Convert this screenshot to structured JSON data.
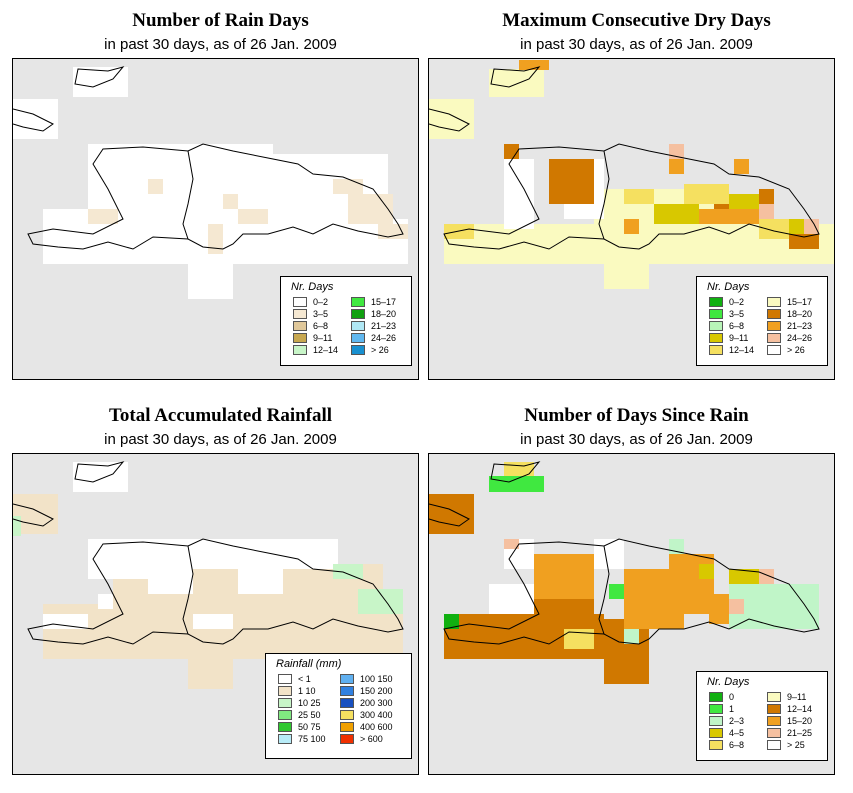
{
  "colors": {
    "land": "#ffffff",
    "sea": "#e6e6e6",
    "tan": "#f2e3c8",
    "orange": "#e08a0a",
    "darkorange": "#c8780a",
    "yellow": "#f5f08a",
    "lightgreen": "#c8f5c8"
  },
  "panels": [
    {
      "id": "rain-days",
      "title": "Number of Rain Days",
      "subtitle": "in past 30 days, as of  26 Jan. 2009",
      "legend": {
        "title": "Nr. Days",
        "items": [
          {
            "label": "0–2",
            "color": "#ffffff"
          },
          {
            "label": "3–5",
            "color": "#f5e8d2"
          },
          {
            "label": "6–8",
            "color": "#e0c89a"
          },
          {
            "label": "9–11",
            "color": "#c8a850"
          },
          {
            "label": "12–14",
            "color": "#c8f5c8"
          },
          {
            "label": "15–17",
            "color": "#40e840"
          },
          {
            "label": "18–20",
            "color": "#10a010"
          },
          {
            "label": "21–23",
            "color": "#b0e8f5"
          },
          {
            "label": "24–26",
            "color": "#60b8f0"
          },
          {
            "label": "> 26",
            "color": "#1890d0"
          }
        ]
      }
    },
    {
      "id": "max-dry-days",
      "title": "Maximum Consecutive Dry Days",
      "subtitle": "in past 30 days, as of  26 Jan. 2009",
      "legend": {
        "title": "Nr. Days",
        "items": [
          {
            "label": "0–2",
            "color": "#10b010"
          },
          {
            "label": "3–5",
            "color": "#40e840"
          },
          {
            "label": "6–8",
            "color": "#b8f5b8"
          },
          {
            "label": "9–11",
            "color": "#d8c800"
          },
          {
            "label": "12–14",
            "color": "#f5e060"
          },
          {
            "label": "15–17",
            "color": "#fafac0"
          },
          {
            "label": "18–20",
            "color": "#d07800"
          },
          {
            "label": "21–23",
            "color": "#f0a020"
          },
          {
            "label": "24–26",
            "color": "#f5c0a0"
          },
          {
            "label": "> 26",
            "color": "#ffffff"
          }
        ]
      }
    },
    {
      "id": "total-rainfall",
      "title": "Total Accumulated Rainfall",
      "subtitle": "in past 30 days, as of  26 Jan. 2009",
      "legend": {
        "title": "Rainfall (mm)",
        "items": [
          {
            "label": "< 1",
            "color": "#ffffff"
          },
          {
            "label": "1    10",
            "color": "#f2e3c8"
          },
          {
            "label": "10    25",
            "color": "#c8f5c8"
          },
          {
            "label": "25    50",
            "color": "#80e880"
          },
          {
            "label": "50    75",
            "color": "#30c830"
          },
          {
            "label": "75   100",
            "color": "#b8ecf8"
          },
          {
            "label": "100  150",
            "color": "#60b0f0"
          },
          {
            "label": "150  200",
            "color": "#3080e0"
          },
          {
            "label": "200  300",
            "color": "#1850c0"
          },
          {
            "label": "300  400",
            "color": "#f5e060"
          },
          {
            "label": "400  600",
            "color": "#f0a000"
          },
          {
            "label": "> 600",
            "color": "#f03000"
          }
        ]
      }
    },
    {
      "id": "days-since-rain",
      "title": "Number of Days Since Rain",
      "subtitle": "in past 30 days, as of  26 Jan. 2009",
      "legend": {
        "title": "Nr. Days",
        "items": [
          {
            "label": "0",
            "color": "#10b010"
          },
          {
            "label": "1",
            "color": "#40e840"
          },
          {
            "label": "2–3",
            "color": "#c0f5c8"
          },
          {
            "label": "4–5",
            "color": "#d8c800"
          },
          {
            "label": "6–8",
            "color": "#f5e060"
          },
          {
            "label": "9–11",
            "color": "#fafac0"
          },
          {
            "label": "12–14",
            "color": "#d07800"
          },
          {
            "label": "15–20",
            "color": "#f0a020"
          },
          {
            "label": "21–25",
            "color": "#f5c0a0"
          },
          {
            "label": "> 25",
            "color": "#ffffff"
          }
        ]
      }
    }
  ]
}
